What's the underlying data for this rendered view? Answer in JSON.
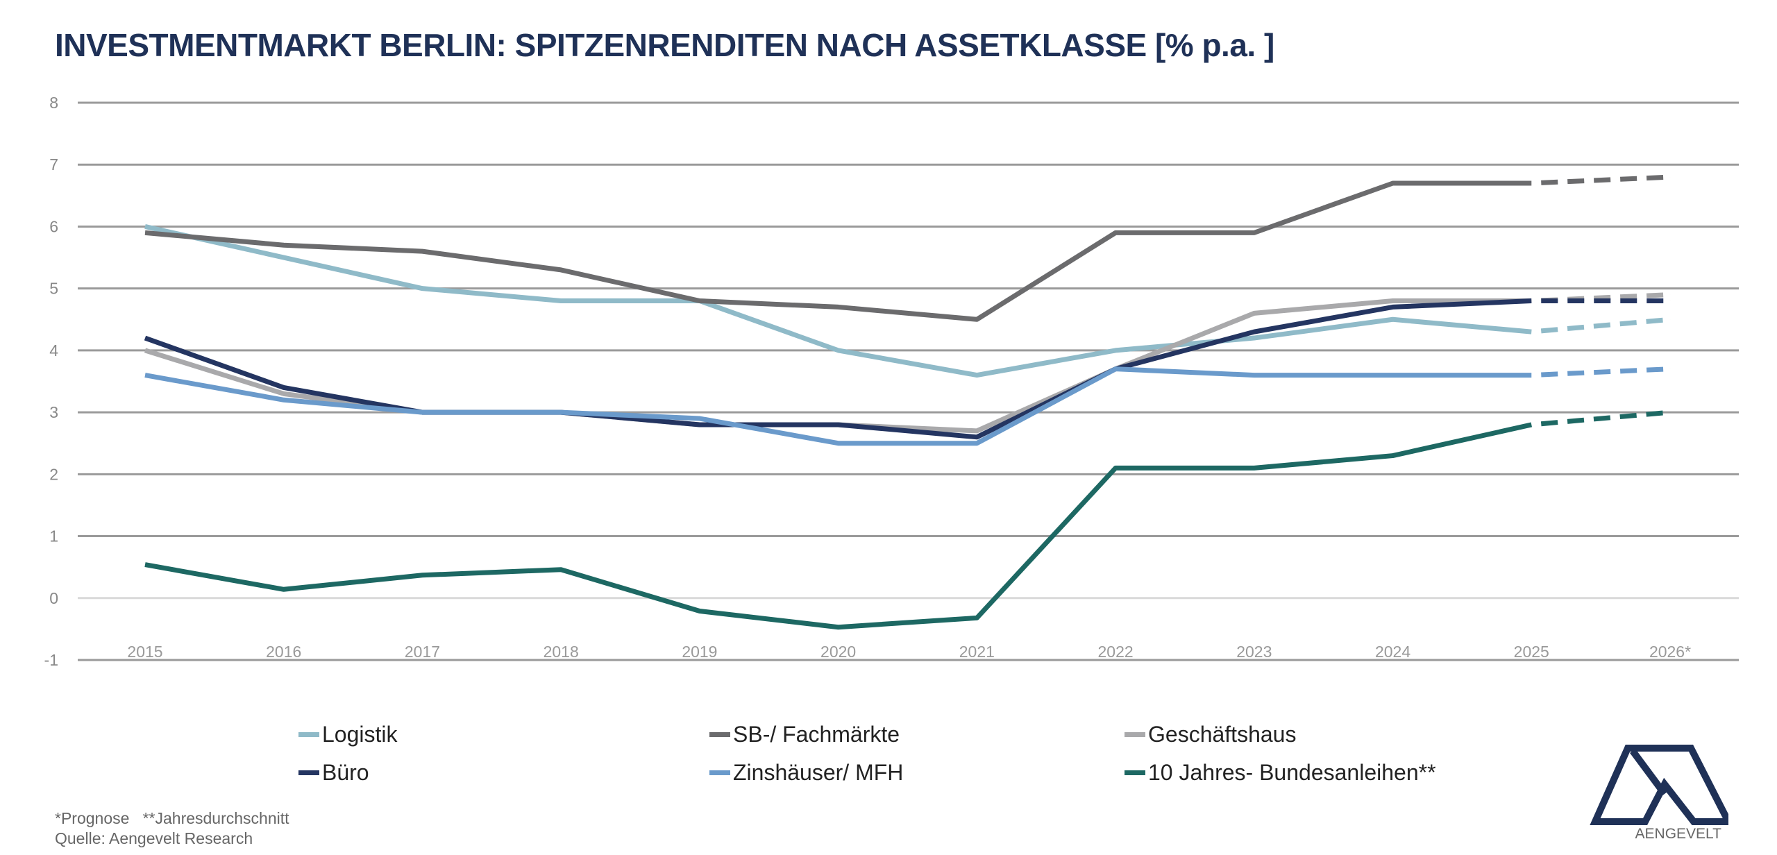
{
  "chart_data": {
    "type": "line",
    "title": "INVESTMENTMARKT BERLIN: SPITZENRENDITEN NACH ASSETKLASSE [% p.a. ]",
    "categories": [
      "2015",
      "2016",
      "2017",
      "2018",
      "2019",
      "2020",
      "2021",
      "2022",
      "2023",
      "2024",
      "2025",
      "2026*"
    ],
    "ylim": [
      -1,
      8
    ],
    "yticks": [
      "-1",
      "0",
      "1",
      "2",
      "3",
      "4",
      "5",
      "6",
      "7",
      "8"
    ],
    "grid": true,
    "legend_position": "bottom",
    "forecast_dashed_from": "2025",
    "series": [
      {
        "name": "Logistik",
        "color": "#8fbac8",
        "values": [
          6.0,
          5.5,
          5.0,
          4.8,
          4.8,
          4.0,
          3.6,
          4.0,
          4.2,
          4.5,
          4.3,
          4.5
        ]
      },
      {
        "name": "SB-/ Fachmärkte",
        "color": "#6b6b6d",
        "values": [
          5.9,
          5.7,
          5.6,
          5.3,
          4.8,
          4.7,
          4.5,
          5.9,
          5.9,
          6.7,
          6.7,
          6.8
        ]
      },
      {
        "name": "Geschäftshaus",
        "color": "#a9a9ab",
        "values": [
          4.0,
          3.3,
          3.0,
          3.0,
          2.8,
          2.8,
          2.7,
          3.7,
          4.6,
          4.8,
          4.8,
          4.9
        ]
      },
      {
        "name": "Büro",
        "color": "#243561",
        "values": [
          4.2,
          3.4,
          3.0,
          3.0,
          2.8,
          2.8,
          2.6,
          3.7,
          4.3,
          4.7,
          4.8,
          4.8
        ]
      },
      {
        "name": "Zinshäuser/ MFH",
        "color": "#6a9acb",
        "values": [
          3.6,
          3.2,
          3.0,
          3.0,
          2.9,
          2.5,
          2.5,
          3.7,
          3.6,
          3.6,
          3.6,
          3.7
        ]
      },
      {
        "name": "10 Jahres- Bundesanleihen**",
        "color": "#1d6863",
        "values": [
          0.54,
          0.14,
          0.37,
          0.46,
          -0.21,
          -0.47,
          -0.32,
          2.1,
          2.1,
          2.3,
          2.8,
          3.0
        ]
      }
    ]
  },
  "footer": {
    "note": "*Prognose   **Jahresdurchschnitt",
    "source": "Quelle: Aengevelt Research"
  },
  "logo": {
    "text": "AENGEVELT",
    "color": "#1f3157"
  }
}
